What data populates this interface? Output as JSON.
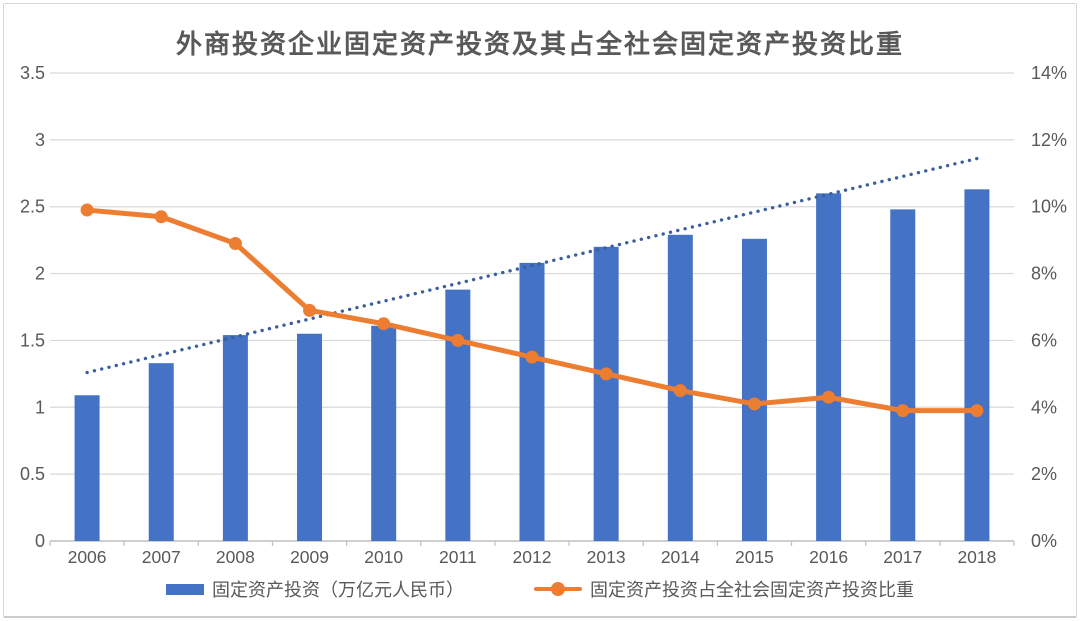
{
  "title": "外商投资企业固定资产投资及其占全社会固定资产投资比重",
  "colors": {
    "bar": "#4472C4",
    "line": "#ED7D31",
    "trendline": "#3A5F9E",
    "gridline": "#D9D9D9",
    "axis_line": "#BFBFBF",
    "text": "#595959"
  },
  "chart_data": {
    "type": "combo-bar-line",
    "title": "外商投资企业固定资产投资及其占全社会固定资产投资比重",
    "categories": [
      "2006",
      "2007",
      "2008",
      "2009",
      "2010",
      "2011",
      "2012",
      "2013",
      "2014",
      "2015",
      "2016",
      "2017",
      "2018"
    ],
    "series": [
      {
        "name": "固定资产投资（万亿元人民币）",
        "type": "bar",
        "axis": "left",
        "values": [
          1.09,
          1.33,
          1.54,
          1.55,
          1.61,
          1.88,
          2.08,
          2.2,
          2.29,
          2.26,
          2.6,
          2.48,
          2.63
        ]
      },
      {
        "name": "固定资产投资占全社会固定资产投资比重",
        "type": "line",
        "axis": "right",
        "unit": "%",
        "values": [
          9.9,
          9.7,
          8.9,
          6.9,
          6.5,
          6.0,
          5.5,
          5.0,
          4.5,
          4.1,
          4.3,
          3.9,
          3.9
        ]
      }
    ],
    "trendline": {
      "of_series": "固定资产投资（万亿元人民币）",
      "style": "dotted",
      "axis": "left",
      "start_value": 1.26,
      "end_value": 2.86
    },
    "left_axis": {
      "min": 0,
      "max": 3.5,
      "step": 0.5,
      "tick_labels": [
        "0",
        "0.5",
        "1",
        "1.5",
        "2",
        "2.5",
        "3",
        "3.5"
      ]
    },
    "right_axis": {
      "min": 0,
      "max": 14,
      "step": 2,
      "tick_labels": [
        "0%",
        "2%",
        "4%",
        "6%",
        "8%",
        "10%",
        "12%",
        "14%"
      ]
    },
    "grid": true,
    "legend_position": "bottom"
  },
  "legend": {
    "items": [
      {
        "label": "固定资产投资（万亿元人民币）",
        "marker": "bar-swatch"
      },
      {
        "label": "固定资产投资占全社会固定资产投资比重",
        "marker": "line-dot-swatch"
      }
    ]
  }
}
